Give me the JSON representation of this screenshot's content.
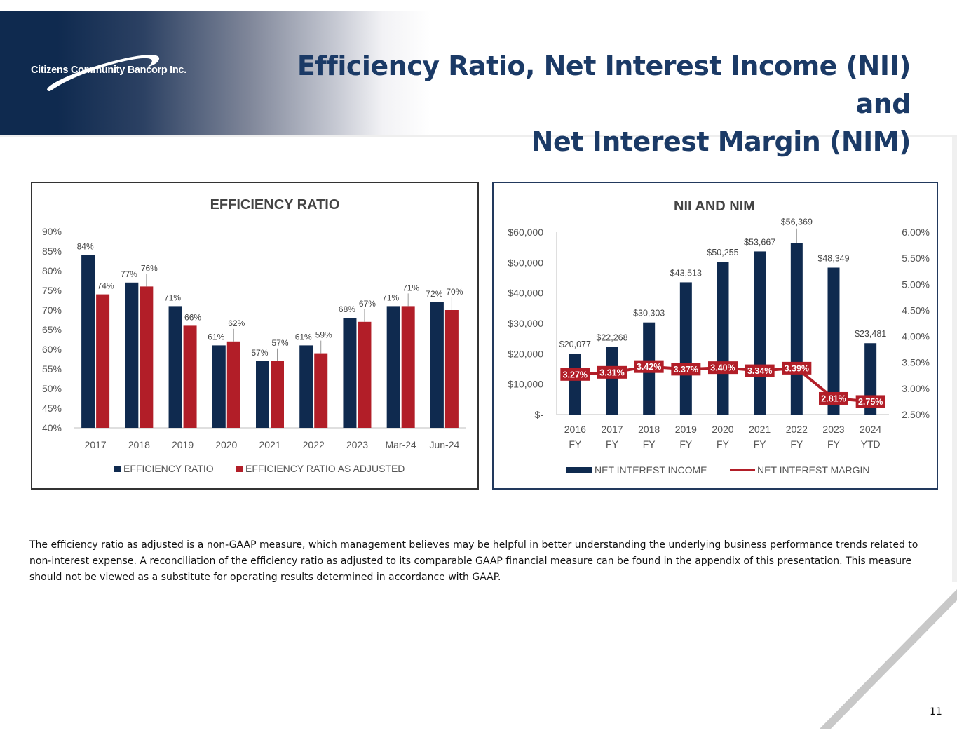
{
  "header": {
    "logo_text": "Citizens Community Bancorp Inc.",
    "title_line1": "Efficiency Ratio, Net Interest Income (NII) and",
    "title_line2": "Net Interest Margin (NIM)"
  },
  "colors": {
    "navy": "#0f2a4f",
    "red": "#b21e28",
    "title": "#1b3a66"
  },
  "chart_data": [
    {
      "type": "bar",
      "title": "EFFICIENCY RATIO",
      "categories": [
        "2017",
        "2018",
        "2019",
        "2020",
        "2021",
        "2022",
        "2023",
        "Mar-24",
        "Jun-24"
      ],
      "series": [
        {
          "name": "EFFICIENCY RATIO",
          "values": [
            84,
            77,
            71,
            61,
            57,
            61,
            68,
            71,
            72
          ],
          "labels": [
            "84%",
            "77%",
            "71%",
            "61%",
            "57%",
            "61%",
            "68%",
            "71%",
            "72%"
          ],
          "color": "#0f2a4f"
        },
        {
          "name": "EFFICIENCY RATIO AS ADJUSTED",
          "values": [
            74,
            76,
            66,
            62,
            57,
            59,
            67,
            71,
            70
          ],
          "labels": [
            "74%",
            "76%",
            "66%",
            "62%",
            "57%",
            "59%",
            "67%",
            "71%",
            "70%"
          ],
          "color": "#b21e28"
        }
      ],
      "ylim": [
        40,
        90
      ],
      "yticks": [
        "40%",
        "45%",
        "50%",
        "55%",
        "60%",
        "65%",
        "70%",
        "75%",
        "80%",
        "85%",
        "90%"
      ],
      "legend": "bottom",
      "grid": false
    },
    {
      "type": "bar",
      "title": "NII AND NIM",
      "categories": [
        [
          "2016",
          "FY"
        ],
        [
          "2017",
          "FY"
        ],
        [
          "2018",
          "FY"
        ],
        [
          "2019",
          "FY"
        ],
        [
          "2020",
          "FY"
        ],
        [
          "2021",
          "FY"
        ],
        [
          "2022",
          "FY"
        ],
        [
          "2023",
          "FY"
        ],
        [
          "2024",
          "YTD"
        ]
      ],
      "series": [
        {
          "name": "NET INTEREST INCOME",
          "type": "bar",
          "axis": "left",
          "values": [
            20077,
            22268,
            30303,
            43513,
            50255,
            53667,
            56369,
            48349,
            23481
          ],
          "labels": [
            "$20,077",
            "$22,268",
            "$30,303",
            "$43,513",
            "$50,255",
            "$53,667",
            "$56,369",
            "$48,349",
            "$23,481"
          ],
          "color": "#0f2a4f"
        },
        {
          "name": "NET INTEREST MARGIN",
          "type": "line",
          "axis": "right",
          "values": [
            3.27,
            3.31,
            3.42,
            3.37,
            3.4,
            3.34,
            3.39,
            2.81,
            2.75
          ],
          "labels": [
            "3.27%",
            "3.31%",
            "3.42%",
            "3.37%",
            "3.40%",
            "3.34%",
            "3.39%",
            "2.81%",
            "2.75%"
          ],
          "color": "#b21e28"
        }
      ],
      "ylim_left": [
        0,
        60000
      ],
      "yticks_left": [
        "$-",
        "$10,000",
        "$20,000",
        "$30,000",
        "$40,000",
        "$50,000",
        "$60,000"
      ],
      "ylim_right": [
        2.5,
        6.0
      ],
      "yticks_right": [
        "2.50%",
        "3.00%",
        "3.50%",
        "4.00%",
        "4.50%",
        "5.00%",
        "5.50%",
        "6.00%"
      ],
      "legend": "bottom",
      "grid": false
    }
  ],
  "note": "The efficiency ratio as adjusted is a non-GAAP measure, which management believes may be helpful in better understanding the underlying business performance trends related to non-interest expense. A reconciliation of the efficiency ratio as adjusted to its comparable GAAP financial measure can be found in the appendix of this presentation. This measure should not be viewed as a substitute for operating results determined in accordance with GAAP.",
  "page_number": "11"
}
